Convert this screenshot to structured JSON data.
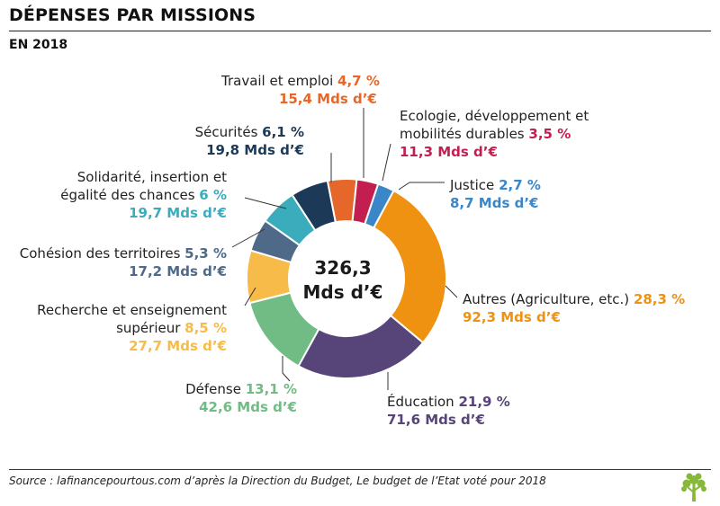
{
  "header": {
    "title": "DÉPENSES PAR MISSIONS",
    "subtitle": "EN 2018"
  },
  "center": {
    "line1": "326,3",
    "line2": "Mds d’€"
  },
  "chart_data": {
    "type": "pie",
    "total": {
      "value": 326.3,
      "unit": "Mds d’€"
    },
    "slices": [
      {
        "label": "Travail et emploi",
        "pct": 4.7,
        "pct_text": "4,7 %",
        "amount": 15.4,
        "amount_text": "15,4 Mds d’€",
        "color": "#e5682a"
      },
      {
        "label": "Ecologie, développement et mobilités durables",
        "pct": 3.5,
        "pct_text": "3,5 %",
        "amount": 11.3,
        "amount_text": "11,3 Mds d’€",
        "color": "#c21f50"
      },
      {
        "label": "Justice",
        "pct": 2.7,
        "pct_text": "2,7 %",
        "amount": 8.7,
        "amount_text": "8,7 Mds d’€",
        "color": "#3a86c8"
      },
      {
        "label": "Autres (Agriculture, etc.)",
        "pct": 28.3,
        "pct_text": "28,3 %",
        "amount": 92.3,
        "amount_text": "92,3 Mds d’€",
        "color": "#ef9211"
      },
      {
        "label": "Éducation",
        "pct": 21.9,
        "pct_text": "21,9 %",
        "amount": 71.6,
        "amount_text": "71,6 Mds d’€",
        "color": "#574479"
      },
      {
        "label": "Défense",
        "pct": 13.1,
        "pct_text": "13,1 %",
        "amount": 42.6,
        "amount_text": "42,6 Mds d’€",
        "color": "#70bc84"
      },
      {
        "label": "Recherche et enseignement supérieur",
        "pct": 8.5,
        "pct_text": "8,5 %",
        "amount": 27.7,
        "amount_text": "27,7 Mds d’€",
        "color": "#f7bb4a"
      },
      {
        "label": "Cohésion des territoires",
        "pct": 5.3,
        "pct_text": "5,3 %",
        "amount": 17.2,
        "amount_text": "17,2 Mds d’€",
        "color": "#4f6a89"
      },
      {
        "label": "Solidarité, insertion et égalité des chances",
        "pct": 6.0,
        "pct_text": "6 %",
        "amount": 19.7,
        "amount_text": "19,7 Mds d’€",
        "color": "#3bacbb"
      },
      {
        "label": "Sécurités",
        "pct": 6.1,
        "pct_text": "6,1 %",
        "amount": 19.8,
        "amount_text": "19,8 Mds d’€",
        "color": "#1c3a57"
      }
    ]
  },
  "labels": {
    "travail": {
      "line1": "Travail et emploi",
      "pct": "4,7 %",
      "amount": "15,4 Mds d’€"
    },
    "ecologie": {
      "line1": "Ecologie, développement et",
      "line2": "mobilités durables",
      "pct": "3,5 %",
      "amount": "11,3 Mds d’€"
    },
    "justice": {
      "line1": "Justice",
      "pct": "2,7 %",
      "amount": "8,7 Mds d’€"
    },
    "autres": {
      "line1": "Autres (Agriculture, etc.)",
      "pct": "28,3 %",
      "amount": "92,3 Mds d’€"
    },
    "education": {
      "line1": "Éducation",
      "pct": "21,9 %",
      "amount": "71,6 Mds d’€"
    },
    "defense": {
      "line1": "Défense",
      "pct": "13,1 %",
      "amount": "42,6 Mds d’€"
    },
    "recherche": {
      "line1": "Recherche et enseignement",
      "line2": "supérieur",
      "pct": "8,5 %",
      "amount": "27,7 Mds d’€"
    },
    "cohesion": {
      "line1": "Cohésion des territoires",
      "pct": "5,3 %",
      "amount": "17,2 Mds d’€"
    },
    "solidarite": {
      "line1": "Solidarité, insertion et",
      "line2": "égalité des chances",
      "pct": "6 %",
      "amount": "19,7 Mds d’€"
    },
    "securites": {
      "line1": "Sécurités",
      "pct": "6,1 %",
      "amount": "19,8 Mds d’€"
    }
  },
  "footer": {
    "source": "Source : lafinancepourtous.com d’après la Direction du Budget, Le budget de l’Etat voté pour 2018"
  },
  "colors": {
    "label_text": "#222222",
    "leader_line": "#333333",
    "background": "#ffffff"
  },
  "icons": {
    "logo": "tree-logo-icon"
  }
}
